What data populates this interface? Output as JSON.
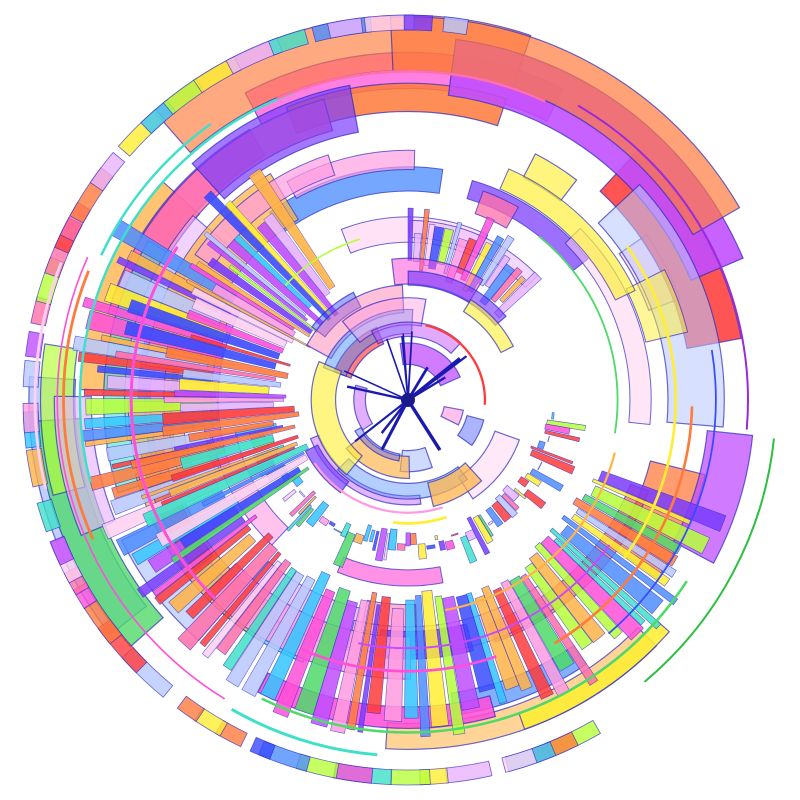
{
  "artwork": {
    "kind": "abstract radial circular segment graphic",
    "background": "#ffffff",
    "outline_color": "#2b2bbf",
    "palette": [
      "#ff3b3b",
      "#ff6fa8",
      "#ff4fd8",
      "#c04dff",
      "#7a3bff",
      "#3a4bff",
      "#4d8dff",
      "#33c6ff",
      "#3fe0c8",
      "#4fd96a",
      "#b6ff3b",
      "#ffee33",
      "#ffb347",
      "#ff7a3d",
      "#ff9be0",
      "#e8b3ff",
      "#b8c8ff",
      "#ffd0f0"
    ]
  }
}
